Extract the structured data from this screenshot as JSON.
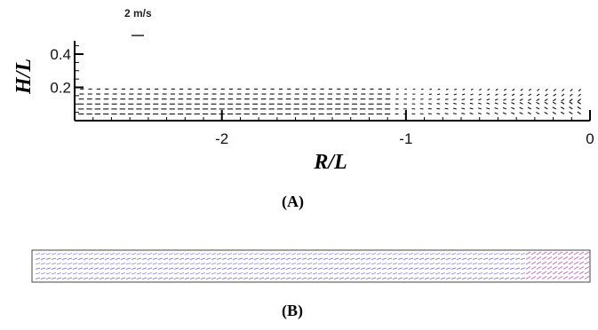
{
  "chart_data": [
    {
      "panel": "(A)",
      "type": "scatter",
      "ylabel": "H/L",
      "xlabel": "R/L",
      "xlim": [
        -2.8,
        0
      ],
      "ylim": [
        0,
        0.48
      ],
      "x_ticks": [
        -2,
        -1,
        0
      ],
      "x_tick_labels": [
        "-2",
        "-1",
        "0"
      ],
      "y_ticks": [
        0.2,
        0.4
      ],
      "y_tick_labels": [
        "0.2",
        "0.4"
      ],
      "reference_vector": {
        "label": "2 m/s",
        "magnitude": 2
      },
      "rows": [
        {
          "y": 0.04,
          "vx": -0.9
        },
        {
          "y": 0.07,
          "vx": -0.9
        },
        {
          "y": 0.1,
          "vx": -0.85
        },
        {
          "y": 0.13,
          "vx": -0.8
        },
        {
          "y": 0.16,
          "vx": -0.7
        },
        {
          "y": 0.19,
          "vx": -0.6
        }
      ]
    },
    {
      "panel": "(B)",
      "type": "scatter",
      "xlim": [
        -2.8,
        0
      ],
      "ylim": [
        0,
        0.2
      ]
    }
  ],
  "labels": {
    "panel_a": "(A)",
    "panel_b": "(B)"
  }
}
